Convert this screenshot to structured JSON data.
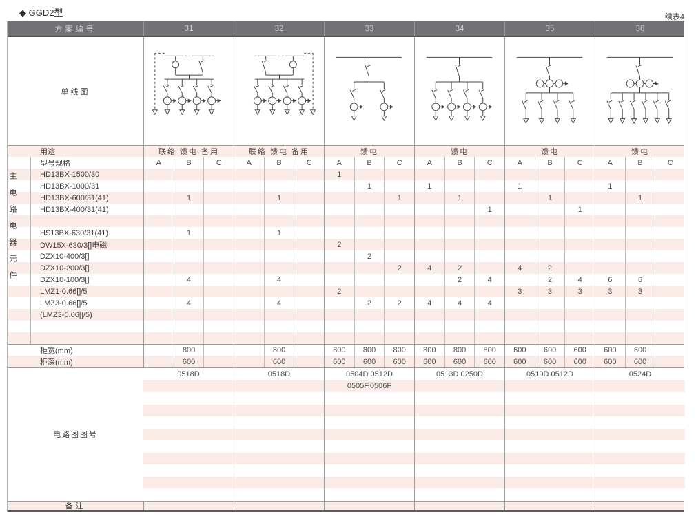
{
  "page": {
    "title": "◆ GGD2型",
    "continuation": "续表4"
  },
  "table": {
    "header": {
      "label": "方案编号",
      "schemes": [
        "31",
        "32",
        "33",
        "34",
        "35",
        "36"
      ]
    },
    "diagram_row_label": "单线图",
    "diagrams": [
      {
        "scheme": "31",
        "kind": "dual",
        "branches": 4,
        "dashed_side": "left",
        "branch_ct": true,
        "header_cts": 0
      },
      {
        "scheme": "32",
        "kind": "dual",
        "branches": 4,
        "dashed_side": "right",
        "branch_ct": true,
        "header_cts": 0
      },
      {
        "scheme": "33",
        "kind": "single",
        "branches": 2,
        "dashed_side": "none",
        "branch_ct": true,
        "header_cts": 0
      },
      {
        "scheme": "34",
        "kind": "single",
        "branches": 4,
        "dashed_side": "none",
        "branch_ct": true,
        "header_cts": 0
      },
      {
        "scheme": "35",
        "kind": "single",
        "branches": 4,
        "dashed_side": "none",
        "branch_ct": false,
        "header_cts": 3
      },
      {
        "scheme": "36",
        "kind": "single",
        "branches": 6,
        "dashed_side": "none",
        "branch_ct": false,
        "header_cts": 3
      }
    ],
    "usage_row": {
      "label": "用途",
      "values": [
        "联络 馈电 备用",
        "联络 馈电 备用",
        "馈电",
        "馈电",
        "馈电",
        "馈电"
      ]
    },
    "spec_header": {
      "label": "型号规格",
      "subcols": [
        "A",
        "B",
        "C"
      ]
    },
    "side_label": "主电路电器元件",
    "component_rows": [
      {
        "label": "HD13BX-1500/30",
        "cells": [
          "",
          "",
          "",
          "",
          "",
          "",
          "1",
          "",
          "",
          "",
          "",
          "",
          "",
          "",
          "",
          "",
          "",
          ""
        ]
      },
      {
        "label": "HD13BX-1000/31",
        "cells": [
          "",
          "",
          "",
          "",
          "",
          "",
          "",
          "1",
          "",
          "1",
          "",
          "",
          "1",
          "",
          "",
          "1",
          "",
          ""
        ]
      },
      {
        "label": "HD13BX-600/31(41)",
        "cells": [
          "",
          "1",
          "",
          "",
          "1",
          "",
          "",
          "",
          "1",
          "",
          "1",
          "",
          "",
          "1",
          "",
          "",
          "1",
          ""
        ]
      },
      {
        "label": "HD13BX-400/31(41)",
        "cells": [
          "",
          "",
          "",
          "",
          "",
          "",
          "",
          "",
          "",
          "",
          "",
          "1",
          "",
          "",
          "1",
          "",
          "",
          ""
        ]
      },
      {
        "label": "",
        "cells": [
          "",
          "",
          "",
          "",
          "",
          "",
          "",
          "",
          "",
          "",
          "",
          "",
          "",
          "",
          "",
          "",
          "",
          ""
        ]
      },
      {
        "label": "HS13BX-630/31(41)",
        "cells": [
          "",
          "1",
          "",
          "",
          "1",
          "",
          "",
          "",
          "",
          "",
          "",
          "",
          "",
          "",
          "",
          "",
          "",
          ""
        ]
      },
      {
        "label": "DW15X-630/3[]电磁",
        "cells": [
          "",
          "",
          "",
          "",
          "",
          "",
          "2",
          "",
          "",
          "",
          "",
          "",
          "",
          "",
          "",
          "",
          "",
          ""
        ]
      },
      {
        "label": "DZX10-400/3[]",
        "cells": [
          "",
          "",
          "",
          "",
          "",
          "",
          "",
          "2",
          "",
          "",
          "",
          "",
          "",
          "",
          "",
          "",
          "",
          ""
        ]
      },
      {
        "label": "DZX10-200/3[]",
        "cells": [
          "",
          "",
          "",
          "",
          "",
          "",
          "",
          "",
          "2",
          "4",
          "2",
          "",
          "4",
          "2",
          "",
          "",
          "",
          ""
        ]
      },
      {
        "label": "DZX10-100/3[]",
        "cells": [
          "",
          "4",
          "",
          "",
          "4",
          "",
          "",
          "",
          "",
          "",
          "2",
          "4",
          "",
          "2",
          "4",
          "6",
          "6",
          ""
        ]
      },
      {
        "label": "LMZ1-0.66[]/5",
        "cells": [
          "",
          "",
          "",
          "",
          "",
          "",
          "2",
          "",
          "",
          "",
          "",
          "",
          "3",
          "3",
          "3",
          "3",
          "3",
          ""
        ]
      },
      {
        "label": "LMZ3-0.66[]/5",
        "cells": [
          "",
          "4",
          "",
          "",
          "4",
          "",
          "",
          "2",
          "2",
          "4",
          "4",
          "4",
          "",
          "",
          "",
          "",
          "",
          ""
        ]
      },
      {
        "label": "(LMZ3-0.66[]/5)",
        "cells": [
          "",
          "",
          "",
          "",
          "",
          "",
          "",
          "",
          "",
          "",
          "",
          "",
          "",
          "",
          "",
          "",
          "",
          ""
        ]
      },
      {
        "label": "",
        "cells": [
          "",
          "",
          "",
          "",
          "",
          "",
          "",
          "",
          "",
          "",
          "",
          "",
          "",
          "",
          "",
          "",
          "",
          ""
        ]
      },
      {
        "label": "",
        "cells": [
          "",
          "",
          "",
          "",
          "",
          "",
          "",
          "",
          "",
          "",
          "",
          "",
          "",
          "",
          "",
          "",
          "",
          ""
        ]
      }
    ],
    "width_row": {
      "label": "柜宽(mm)",
      "cells": [
        "",
        "800",
        "",
        "",
        "800",
        "",
        "800",
        "800",
        "800",
        "800",
        "800",
        "800",
        "600",
        "600",
        "600",
        "600",
        "600",
        ""
      ]
    },
    "depth_row": {
      "label": "柜深(mm)",
      "cells": [
        "",
        "600",
        "",
        "",
        "600",
        "",
        "600",
        "600",
        "600",
        "600",
        "600",
        "600",
        "600",
        "600",
        "600",
        "600",
        "600",
        ""
      ]
    },
    "drawing_block": {
      "label": "电路图图号",
      "rows": [
        [
          "0518D",
          "0518D",
          "0504D.0512D",
          "0513D.0250D",
          "0519D.0512D",
          "0524D"
        ],
        [
          "",
          "",
          "0505F.0506F",
          "",
          "",
          ""
        ]
      ],
      "empty_row_count": 9
    },
    "remark_row": {
      "label": "备注"
    }
  }
}
